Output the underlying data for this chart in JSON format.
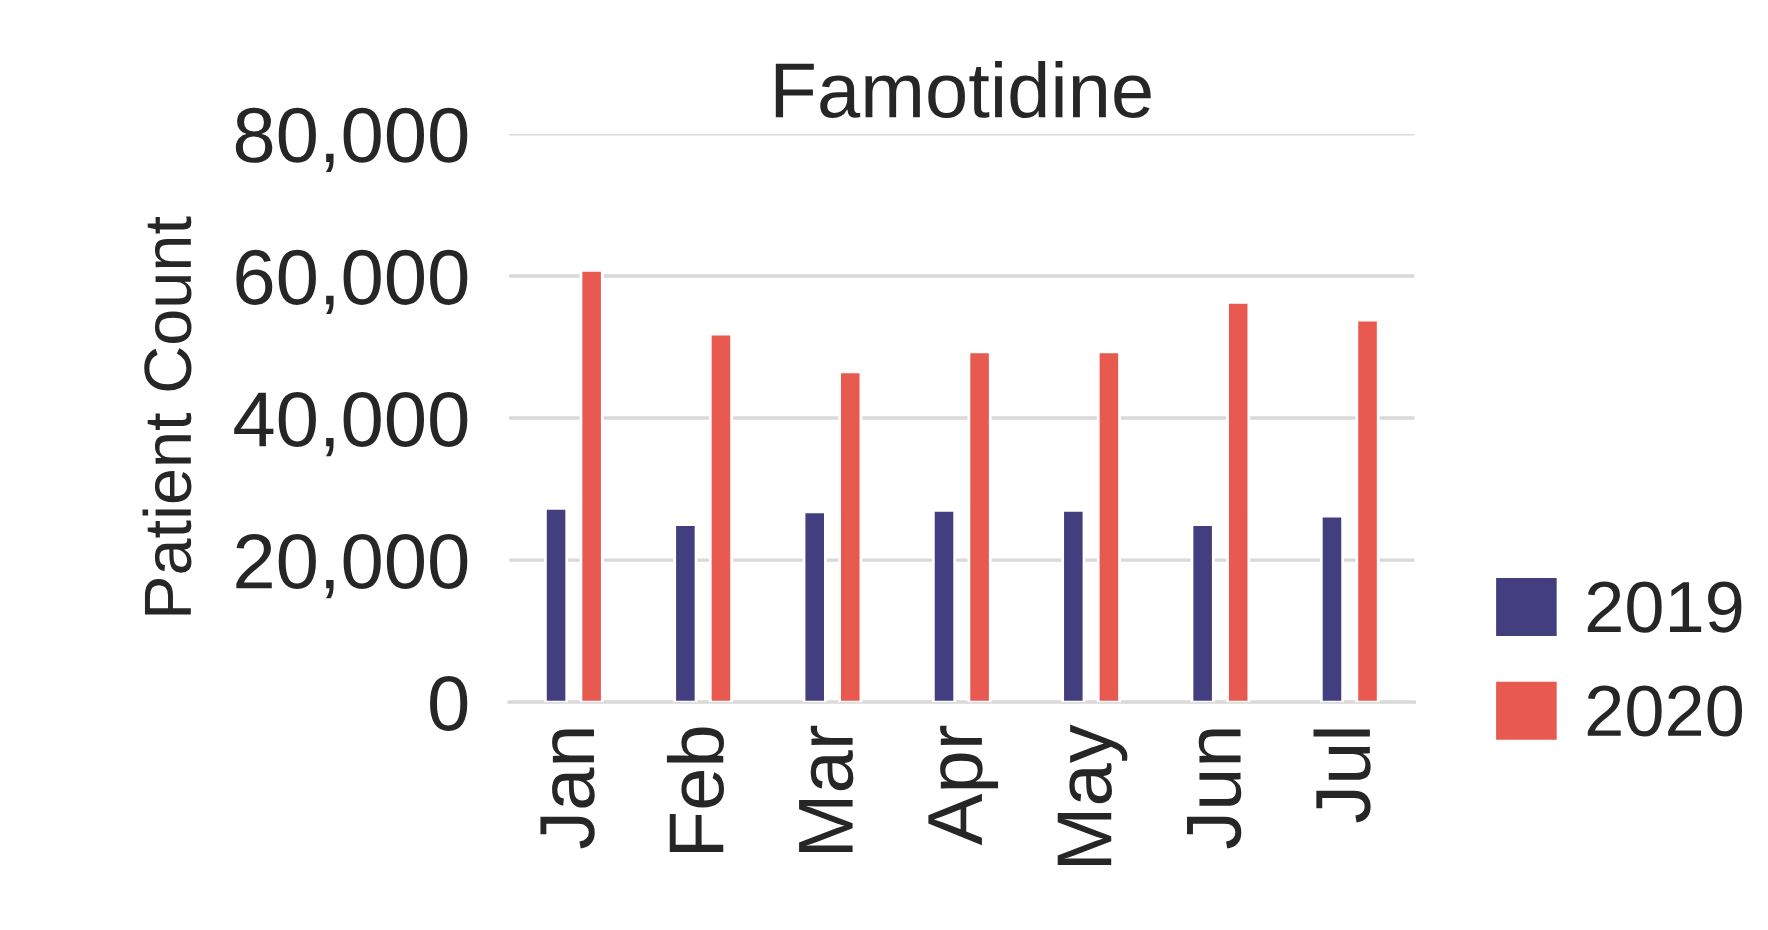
{
  "chart_data": {
    "type": "bar",
    "title": "Famotidine",
    "ylabel": "Patient Count",
    "categories": [
      "Jan",
      "Feb",
      "Mar",
      "Apr",
      "May",
      "Jun",
      "Jul"
    ],
    "series": [
      {
        "name": "2019",
        "color": "#433e7f",
        "values": [
          27300,
          25000,
          26800,
          27000,
          27000,
          25000,
          26200
        ]
      },
      {
        "name": "2020",
        "color": "#e8594f",
        "values": [
          60800,
          51800,
          46500,
          49300,
          49300,
          56300,
          53800
        ]
      }
    ],
    "ylim": [
      0,
      80000
    ],
    "yticks": [
      {
        "value": 0,
        "label": "0"
      },
      {
        "value": 20000,
        "label": "20,000"
      },
      {
        "value": 40000,
        "label": "40,000"
      },
      {
        "value": 60000,
        "label": "60,000"
      },
      {
        "value": 80000,
        "label": "80,000"
      }
    ],
    "grid": "y",
    "legend": "bottom right"
  }
}
